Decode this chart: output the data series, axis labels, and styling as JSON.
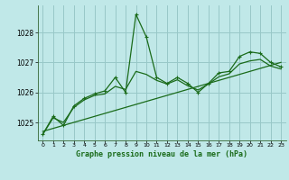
{
  "title": "Graphe pression niveau de la mer (hPa)",
  "bg_color": "#c0e8e8",
  "grid_color": "#98c8c8",
  "line_color": "#1a6b1a",
  "xlim": [
    -0.5,
    23.5
  ],
  "ylim": [
    1024.4,
    1028.9
  ],
  "yticks": [
    1025,
    1026,
    1027,
    1028
  ],
  "xticks": [
    0,
    1,
    2,
    3,
    4,
    5,
    6,
    7,
    8,
    9,
    10,
    11,
    12,
    13,
    14,
    15,
    16,
    17,
    18,
    19,
    20,
    21,
    22,
    23
  ],
  "jagged_x": [
    0,
    1,
    2,
    3,
    4,
    5,
    6,
    7,
    8,
    9,
    10,
    11,
    12,
    13,
    14,
    15,
    16,
    17,
    18,
    19,
    20,
    21,
    22,
    23
  ],
  "jagged_y": [
    1024.6,
    1025.2,
    1024.9,
    1025.55,
    1025.8,
    1025.95,
    1026.05,
    1026.5,
    1026.0,
    1028.6,
    1027.85,
    1026.5,
    1026.3,
    1026.5,
    1026.3,
    1026.0,
    1026.3,
    1026.65,
    1026.7,
    1027.2,
    1027.35,
    1027.3,
    1027.0,
    1026.85
  ],
  "smooth_x": [
    0,
    1,
    2,
    3,
    4,
    5,
    6,
    7,
    8,
    9,
    10,
    11,
    12,
    13,
    14,
    15,
    16,
    17,
    18,
    19,
    20,
    21,
    22,
    23
  ],
  "smooth_y": [
    1024.6,
    1025.15,
    1025.0,
    1025.5,
    1025.75,
    1025.9,
    1025.95,
    1026.2,
    1026.1,
    1026.7,
    1026.6,
    1026.4,
    1026.28,
    1026.42,
    1026.22,
    1026.08,
    1026.28,
    1026.52,
    1026.62,
    1026.95,
    1027.05,
    1027.1,
    1026.88,
    1026.78
  ],
  "trend_x": [
    0,
    23
  ],
  "trend_y": [
    1024.7,
    1027.0
  ]
}
